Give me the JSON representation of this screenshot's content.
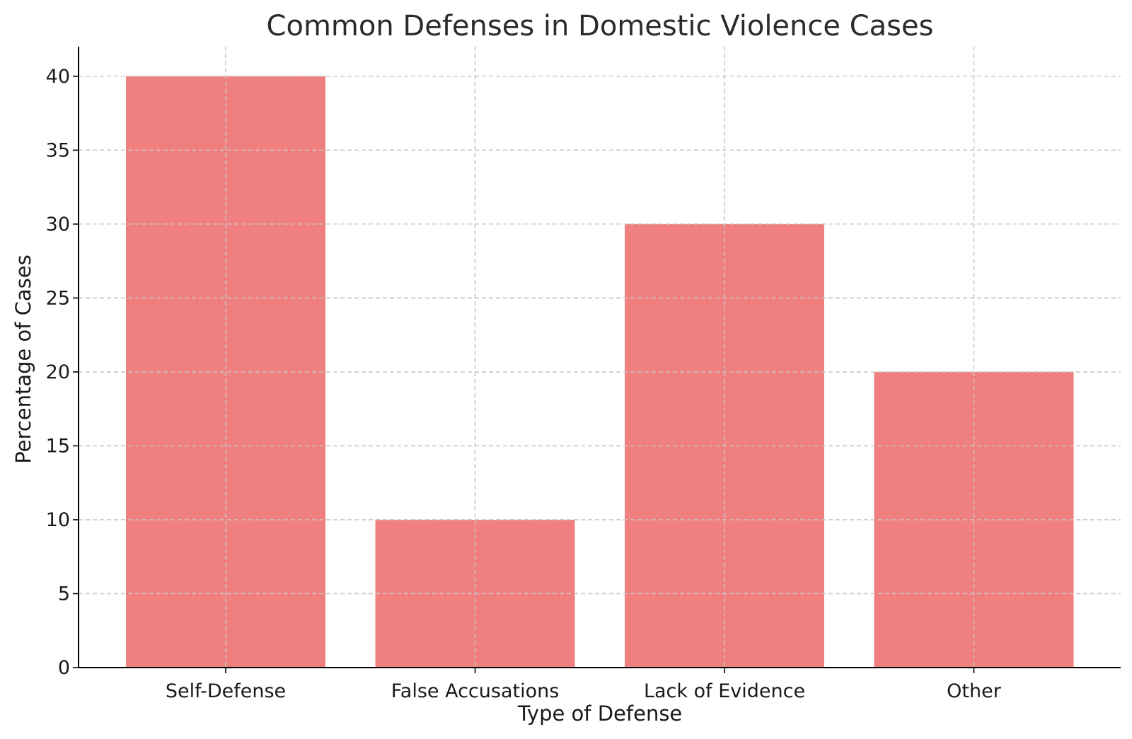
{
  "chart_data": {
    "type": "bar",
    "title": "Common Defenses in Domestic Violence Cases",
    "xlabel": "Type of Defense",
    "ylabel": "Percentage of Cases",
    "categories": [
      "Self-Defense",
      "False Accusations",
      "Lack of Evidence",
      "Other"
    ],
    "values": [
      40,
      10,
      30,
      20
    ],
    "ylim": [
      0,
      42
    ],
    "yticks": [
      0,
      5,
      10,
      15,
      20,
      25,
      30,
      35,
      40
    ],
    "grid": true,
    "bar_color": "#f08080"
  }
}
